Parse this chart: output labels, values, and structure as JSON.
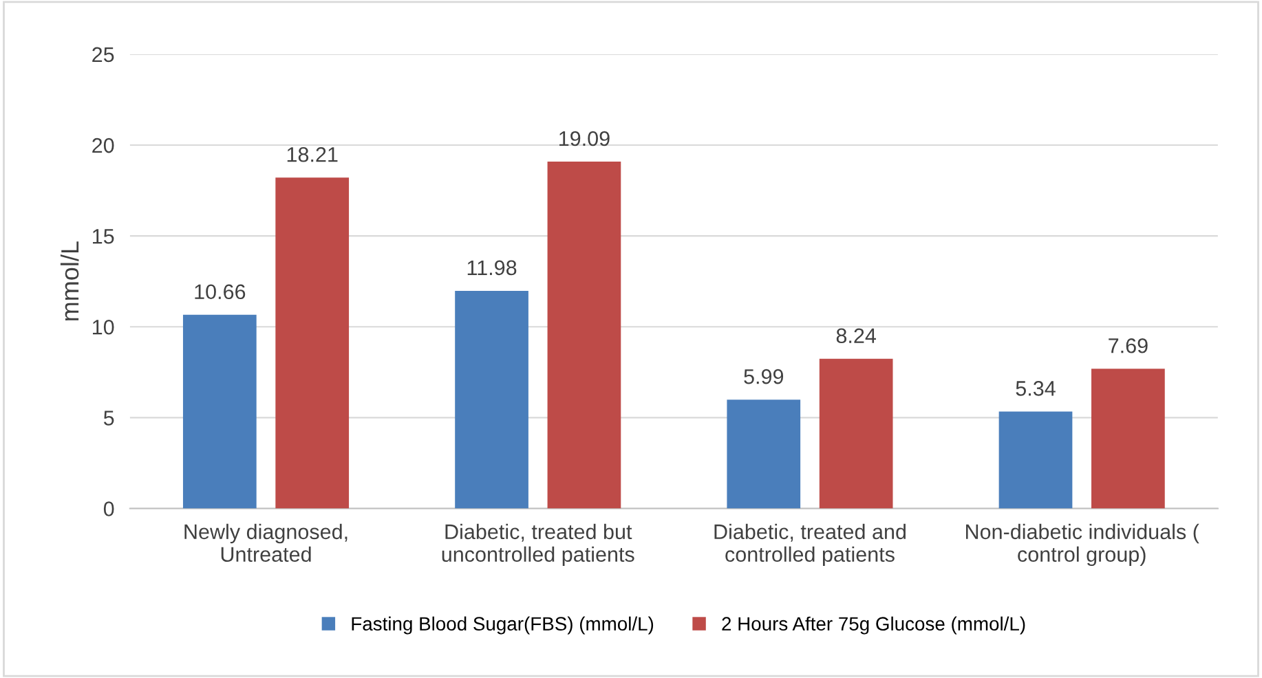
{
  "chart_data": {
    "type": "bar",
    "ylabel": "mmol/L",
    "categories": [
      "Newly diagnosed,\nUntreated",
      "Diabetic, treated but\nuncontrolled patients",
      "Diabetic, treated and\ncontrolled patients",
      "Non-diabetic individuals (\ncontrol group)"
    ],
    "series": [
      {
        "name": "Fasting Blood Sugar(FBS) (mmol/L)",
        "color": "#4a7ebb",
        "values": [
          10.66,
          11.98,
          5.99,
          5.34
        ]
      },
      {
        "name": "2 Hours After 75g Glucose (mmol/L)",
        "color": "#be4b48",
        "values": [
          18.21,
          19.09,
          8.24,
          7.69
        ]
      }
    ],
    "ylim": [
      0,
      25
    ],
    "yticks": [
      0,
      5,
      10,
      15,
      20,
      25
    ],
    "grid": "y",
    "legend": "bottom",
    "data_labels": true
  }
}
